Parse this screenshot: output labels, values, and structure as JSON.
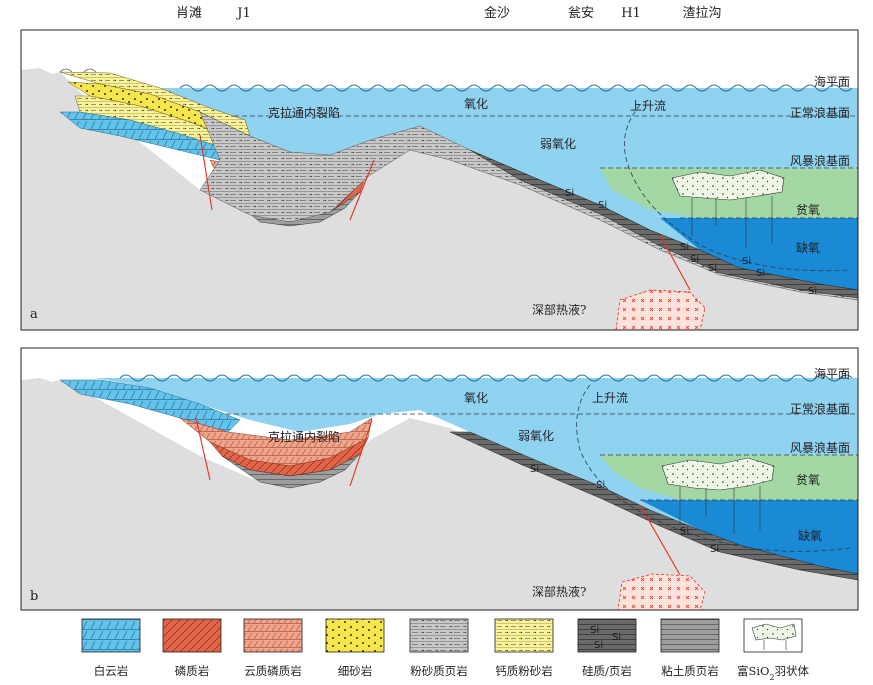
{
  "locations": [
    "肖滩",
    "J1",
    "金沙",
    "瓮安",
    "H1",
    "渣拉沟"
  ],
  "panel_a": {
    "letter": "a",
    "labels": {
      "sea_level": "海平面",
      "normal_wave_base": "正常浪基面",
      "storm_wave_base": "风暴浪基面",
      "dysoxic": "贫氧",
      "anoxic": "缺氧",
      "rift": "克拉通内裂陷",
      "oxic": "氧化",
      "weak_oxic": "弱氧化",
      "upwelling": "上升流",
      "hydrothermal": "深部热液?"
    },
    "si_marks": [
      "Si",
      "Si",
      "Si",
      "Si",
      "Si",
      "Si",
      "Si",
      "Si"
    ]
  },
  "panel_b": {
    "letter": "b",
    "labels": {
      "sea_level": "海平面",
      "normal_wave_base": "正常浪基面",
      "storm_wave_base": "风暴浪基面",
      "dysoxic": "贫氧",
      "anoxic": "缺氧",
      "rift": "克拉通内裂陷",
      "oxic": "氧化",
      "weak_oxic": "弱氧化",
      "upwelling": "上升流",
      "hydrothermal": "深部热液?"
    },
    "si_marks": [
      "Si",
      "Si",
      "Si",
      "Si"
    ]
  },
  "legend": [
    {
      "label": "白云岩",
      "pattern": "dolomite"
    },
    {
      "label": "磷质岩",
      "pattern": "phosphorite"
    },
    {
      "label": "云质磷质岩",
      "pattern": "dolo-phosphorite"
    },
    {
      "label": "细砂岩",
      "pattern": "sandstone"
    },
    {
      "label": "粉砂质页岩",
      "pattern": "silty-shale"
    },
    {
      "label": "钙质粉砂岩",
      "pattern": "calc-siltstone"
    },
    {
      "label": "硅质/页岩",
      "pattern": "siliceous-shale",
      "mark": "Si"
    },
    {
      "label": "粘土质页岩",
      "pattern": "clay-shale"
    },
    {
      "label_parts": [
        "富SiO",
        "2",
        "羽状体"
      ],
      "pattern": "sio2-plume"
    }
  ],
  "colors": {
    "water_shallow": "#8fd3f1",
    "oxygen_poor_zone": "#a3d7a4",
    "anoxic_zone": "#1a8ad6",
    "basement": "#dedede",
    "dolomite": "#5fc6ef",
    "phosphorite": "#e4664b",
    "dolo_phosphorite": "#efa08a",
    "sandstone": "#f7e84e",
    "siliceous": "#6c6c6c",
    "silty_shale": "#c3c3c3",
    "fault": "#e8311a",
    "hydrothermal": "#e8311a"
  }
}
